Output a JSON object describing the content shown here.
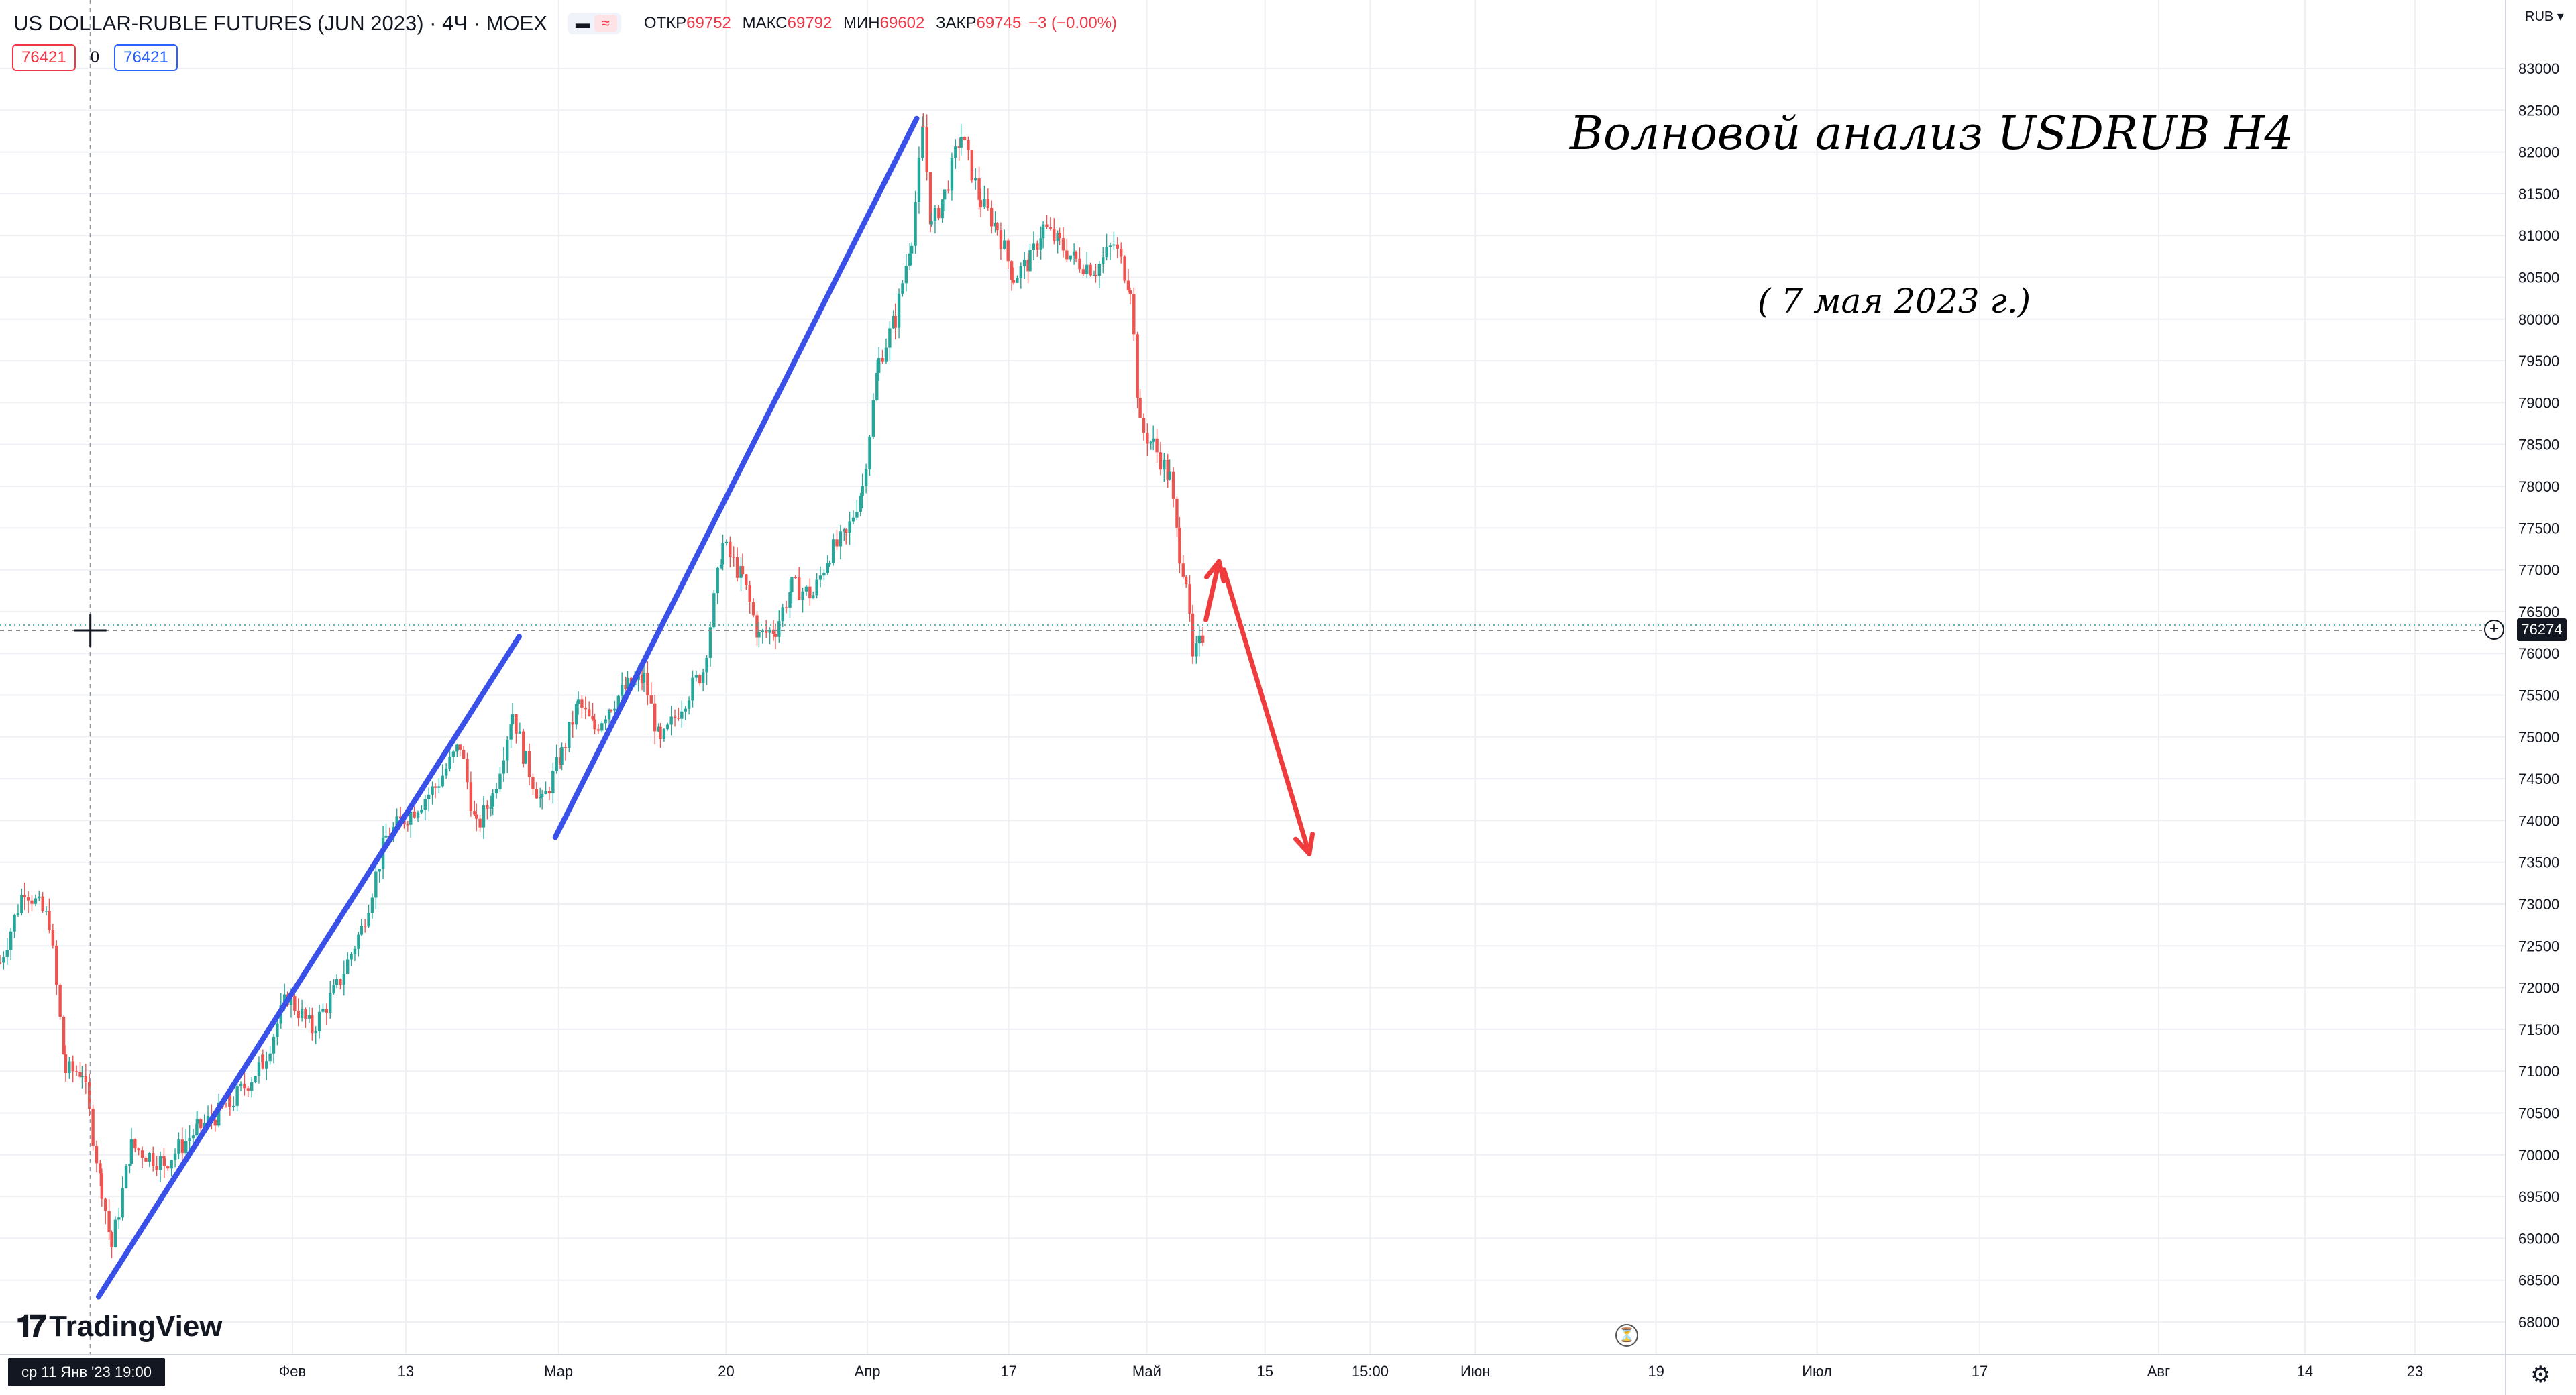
{
  "header": {
    "symbol": "US DOLLAR-RUBLE FUTURES (JUN 2023) · 4Ч · MOEX",
    "ohlc": {
      "open_label": "ОТКР",
      "open": "69752",
      "high_label": "МАКС",
      "high": "69792",
      "low_label": "МИН",
      "low": "69602",
      "close_label": "ЗАКР",
      "close": "69745",
      "change": "−3 (−0.00%)"
    },
    "bid": "76421",
    "spread": "0",
    "ask": "76421"
  },
  "currency": "RUB",
  "last_price": "76274",
  "crosshair_time": "ср 11 Янв '23   19:00",
  "logo": "TradingView",
  "annotations": {
    "title": "Волновой анализ USDRUB H4",
    "date": "( 7 мая 2023 г.)"
  },
  "colors": {
    "up": "#26a69a",
    "down": "#ef5350",
    "trendline": "#3951e8",
    "arrow": "#ef3b3b",
    "grid": "#eef0f4"
  },
  "chart_data": {
    "type": "candlestick",
    "title": "US DOLLAR-RUBLE FUTURES (JUN 2023)",
    "timeframe": "4H",
    "y_ticks": [
      68000,
      68500,
      69000,
      69500,
      70000,
      70500,
      71000,
      71500,
      72000,
      72500,
      73000,
      73500,
      74000,
      74500,
      75000,
      75500,
      76000,
      76500,
      77000,
      77500,
      78000,
      78500,
      79000,
      79500,
      80000,
      80500,
      81000,
      81500,
      82000,
      82500,
      83000
    ],
    "ylim": [
      67700,
      83300
    ],
    "x_tick_labels": [
      "Фев",
      "13",
      "Мар",
      "20",
      "Апр",
      "17",
      "Май",
      "15",
      "15:00",
      "Июн",
      "19",
      "Июл",
      "17",
      "Авг",
      "14",
      "23"
    ],
    "close_path": [
      [
        0,
        72300
      ],
      [
        15,
        73200
      ],
      [
        30,
        72800
      ],
      [
        40,
        71000
      ],
      [
        50,
        71000
      ],
      [
        62,
        69600
      ],
      [
        68,
        68900
      ],
      [
        80,
        70100
      ],
      [
        100,
        69900
      ],
      [
        120,
        70300
      ],
      [
        140,
        70600
      ],
      [
        160,
        71100
      ],
      [
        175,
        71900
      ],
      [
        190,
        71500
      ],
      [
        205,
        72000
      ],
      [
        220,
        72700
      ],
      [
        235,
        73800
      ],
      [
        250,
        74100
      ],
      [
        265,
        74400
      ],
      [
        280,
        74900
      ],
      [
        290,
        73900
      ],
      [
        300,
        74300
      ],
      [
        312,
        75300
      ],
      [
        320,
        74700
      ],
      [
        330,
        74200
      ],
      [
        342,
        74800
      ],
      [
        352,
        75400
      ],
      [
        362,
        75100
      ],
      [
        372,
        75400
      ],
      [
        382,
        75600
      ],
      [
        392,
        75700
      ],
      [
        402,
        74900
      ],
      [
        415,
        75400
      ],
      [
        428,
        75800
      ],
      [
        440,
        77300
      ],
      [
        452,
        76900
      ],
      [
        462,
        76200
      ],
      [
        472,
        76300
      ],
      [
        482,
        76800
      ],
      [
        495,
        76700
      ],
      [
        505,
        77200
      ],
      [
        515,
        77400
      ],
      [
        525,
        78000
      ],
      [
        535,
        79500
      ],
      [
        545,
        80000
      ],
      [
        555,
        81000
      ],
      [
        562,
        82300
      ],
      [
        567,
        81100
      ],
      [
        575,
        81500
      ],
      [
        585,
        82200
      ],
      [
        597,
        81400
      ],
      [
        607,
        81100
      ],
      [
        617,
        80500
      ],
      [
        627,
        80700
      ],
      [
        635,
        81100
      ],
      [
        645,
        80900
      ],
      [
        655,
        80700
      ],
      [
        667,
        80600
      ],
      [
        678,
        80900
      ],
      [
        688,
        80400
      ],
      [
        694,
        78700
      ],
      [
        702,
        78500
      ],
      [
        712,
        78100
      ],
      [
        718,
        77200
      ],
      [
        722,
        76900
      ],
      [
        726,
        75900
      ],
      [
        730,
        76100
      ],
      [
        734,
        76300
      ]
    ],
    "trendlines": [
      {
        "from": {
          "x": 60,
          "y": 68300
        },
        "to": {
          "x": 316,
          "y": 76200
        }
      },
      {
        "from": {
          "x": 338,
          "y": 73800
        },
        "to": {
          "x": 558,
          "y": 82400
        }
      }
    ],
    "projection_arrows": [
      {
        "from": {
          "x": 734,
          "y": 76400
        },
        "to": {
          "x": 742,
          "y": 77100
        }
      },
      {
        "from": {
          "x": 745,
          "y": 77000
        },
        "to": {
          "x": 797,
          "y": 73600
        }
      }
    ],
    "horizontal_levels": [
      76274
    ],
    "grid": true
  }
}
